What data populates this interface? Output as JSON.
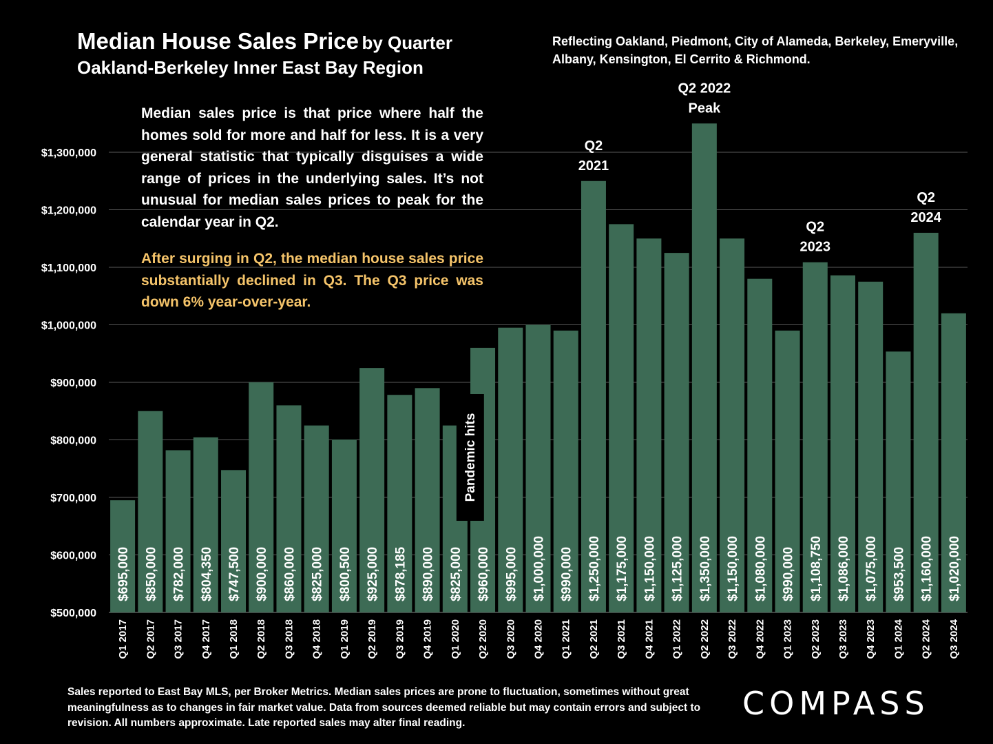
{
  "header": {
    "title_main": "Median House Sales Price",
    "title_by": "by Quarter",
    "subtitle": "Oakland-Berkeley Inner East Bay Region",
    "reflecting": "Reflecting Oakland, Piedmont, City of Alameda, Berkeley, Emeryville, Albany, Kensington, El Cerrito & Richmond."
  },
  "note": {
    "paragraph1": "Median sales price is that price where half the homes sold for more and half for less. It is a very general statistic that typically disguises a wide range of prices in the underlying sales. It’s not unusual for median sales prices to peak for the calendar year in Q2.",
    "paragraph2": "After surging in Q2, the median house sales price substantially declined in Q3. The Q3 price was down 6% year-over-year."
  },
  "footer": {
    "disclaimer": "Sales reported to East Bay MLS, per Broker Metrics. Median sales prices are prone to fluctuation, sometimes without great meaningfulness as to changes in fair market value. Data from sources deemed reliable but may contain errors and subject to revision. All numbers approximate. Late reported sales may alter final reading.",
    "logo": "COMPASS"
  },
  "colors": {
    "bar": "#3d6b55",
    "background": "#000000",
    "highlight": "#f5c46a",
    "gridline": "#5a5a5a"
  },
  "chart_data": {
    "type": "bar",
    "title": "Median House Sales Price by Quarter",
    "ylim": [
      500000,
      1300000
    ],
    "yticks": [
      500000,
      600000,
      700000,
      800000,
      900000,
      1000000,
      1100000,
      1200000,
      1300000
    ],
    "ytick_labels": [
      "$500,000",
      "$600,000",
      "$700,000",
      "$800,000",
      "$900,000",
      "$1,000,000",
      "$1,100,000",
      "$1,200,000",
      "$1,300,000"
    ],
    "grid": true,
    "categories": [
      "Q1 2017",
      "Q2 2017",
      "Q3 2017",
      "Q4 2017",
      "Q1 2018",
      "Q2 2018",
      "Q3 2018",
      "Q4 2018",
      "Q1 2019",
      "Q2 2019",
      "Q3 2019",
      "Q4 2019",
      "Q1 2020",
      "Q2 2020",
      "Q3 2020",
      "Q4 2020",
      "Q1 2021",
      "Q2 2021",
      "Q3 2021",
      "Q4 2021",
      "Q1 2022",
      "Q2 2022",
      "Q3 2022",
      "Q4 2022",
      "Q1 2023",
      "Q2 2023",
      "Q3 2023",
      "Q4 2023",
      "Q1 2024",
      "Q2 2024",
      "Q3 2024"
    ],
    "values": [
      695000,
      850000,
      782000,
      804350,
      747500,
      900000,
      860000,
      825000,
      800500,
      925000,
      878185,
      890000,
      825000,
      960000,
      995000,
      1000000,
      990000,
      1250000,
      1175000,
      1150000,
      1125000,
      1350000,
      1150000,
      1080000,
      990000,
      1108750,
      1086000,
      1075000,
      953500,
      1160000,
      1020000
    ],
    "data_labels": [
      "$695,000",
      "$850,000",
      "$782,000",
      "$804,350",
      "$747,500",
      "$900,000",
      "$860,000",
      "$825,000",
      "$800,500",
      "$925,000",
      "$878,185",
      "$890,000",
      "$825,000",
      "$960,000",
      "$995,000",
      "$1,000,000",
      "$990,000",
      "$1,250,000",
      "$1,175,000",
      "$1,150,000",
      "$1,125,000",
      "$1,350,000",
      "$1,150,000",
      "$1,080,000",
      "$990,000",
      "$1,108,750",
      "$1,086,000",
      "$1,075,000",
      "$953,500",
      "$1,160,000",
      "$1,020,000"
    ],
    "annotations": [
      {
        "category_index": 17,
        "lines": [
          "Q2",
          "2021"
        ]
      },
      {
        "category_index": 21,
        "lines": [
          "Q2 2022",
          "Peak"
        ]
      },
      {
        "category_index": 25,
        "lines": [
          "Q2",
          "2023"
        ]
      },
      {
        "category_index": 29,
        "lines": [
          "Q2",
          "2024"
        ]
      }
    ],
    "callout": {
      "category_index": 12,
      "text": "Pandemic hits"
    }
  }
}
